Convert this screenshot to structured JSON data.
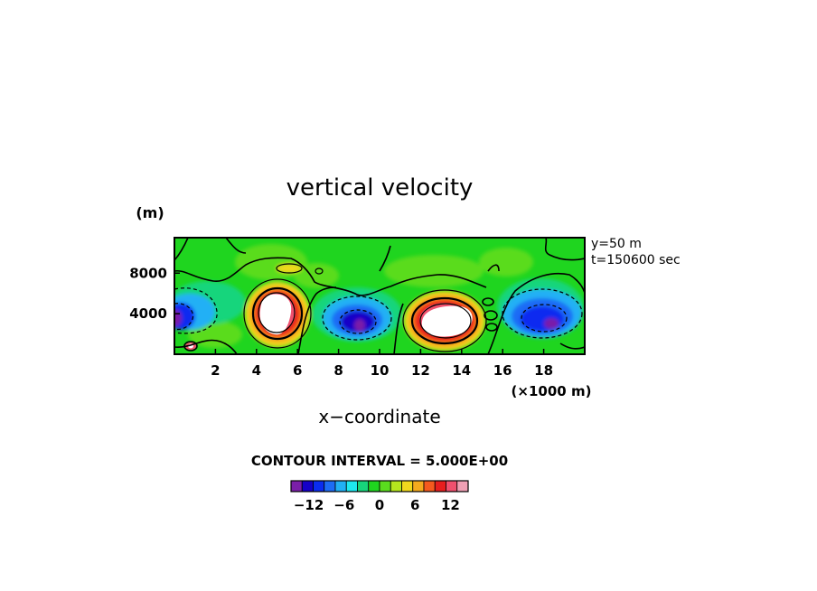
{
  "chart_data": {
    "type": "heatmap",
    "title": "vertical velocity",
    "xlabel": "x−coordinate",
    "x_unit_label": "(×1000 m)",
    "ylabel_unit": "(m)",
    "xlim": [
      0,
      20
    ],
    "ylim": [
      0,
      11500
    ],
    "x_ticks": [
      2,
      4,
      6,
      8,
      10,
      12,
      14,
      16,
      18
    ],
    "y_ticks": [
      4000,
      8000
    ],
    "annotations": [
      "y=50 m",
      "t=150600 sec"
    ],
    "contour_interval_text": "CONTOUR INTERVAL = 5.000E+00",
    "colorbar": {
      "levels": [
        -15,
        -13,
        -11,
        -9,
        -7,
        -5,
        -3,
        -1,
        1,
        3,
        5,
        7,
        9,
        11,
        13,
        15
      ],
      "tick_labels": [
        "−12",
        "−6",
        "0",
        "6",
        "12"
      ],
      "tick_values": [
        -12,
        -6,
        0,
        6,
        12
      ],
      "colors": [
        "#7a1fa8",
        "#1600c8",
        "#0a2cf0",
        "#1d6cf5",
        "#21b0f5",
        "#1ee8ef",
        "#17d57b",
        "#1fd51f",
        "#5adc1e",
        "#b4e61e",
        "#f0d81e",
        "#f5aa1e",
        "#f55a1e",
        "#e61e1e",
        "#f0506e",
        "#f0a0b4"
      ]
    },
    "features": [
      {
        "kind": "updraft",
        "x_km": 4.9,
        "z_m": 3900,
        "peak": 15
      },
      {
        "kind": "downdraft",
        "x_km": 8.8,
        "z_m": 3200,
        "peak": -14
      },
      {
        "kind": "updraft",
        "x_km": 13.2,
        "z_m": 3300,
        "peak": 15
      },
      {
        "kind": "downdraft",
        "x_km": 18.0,
        "z_m": 3800,
        "peak": -12
      },
      {
        "kind": "downdraft",
        "x_km": 0.1,
        "z_m": 3300,
        "peak": -13
      }
    ]
  }
}
